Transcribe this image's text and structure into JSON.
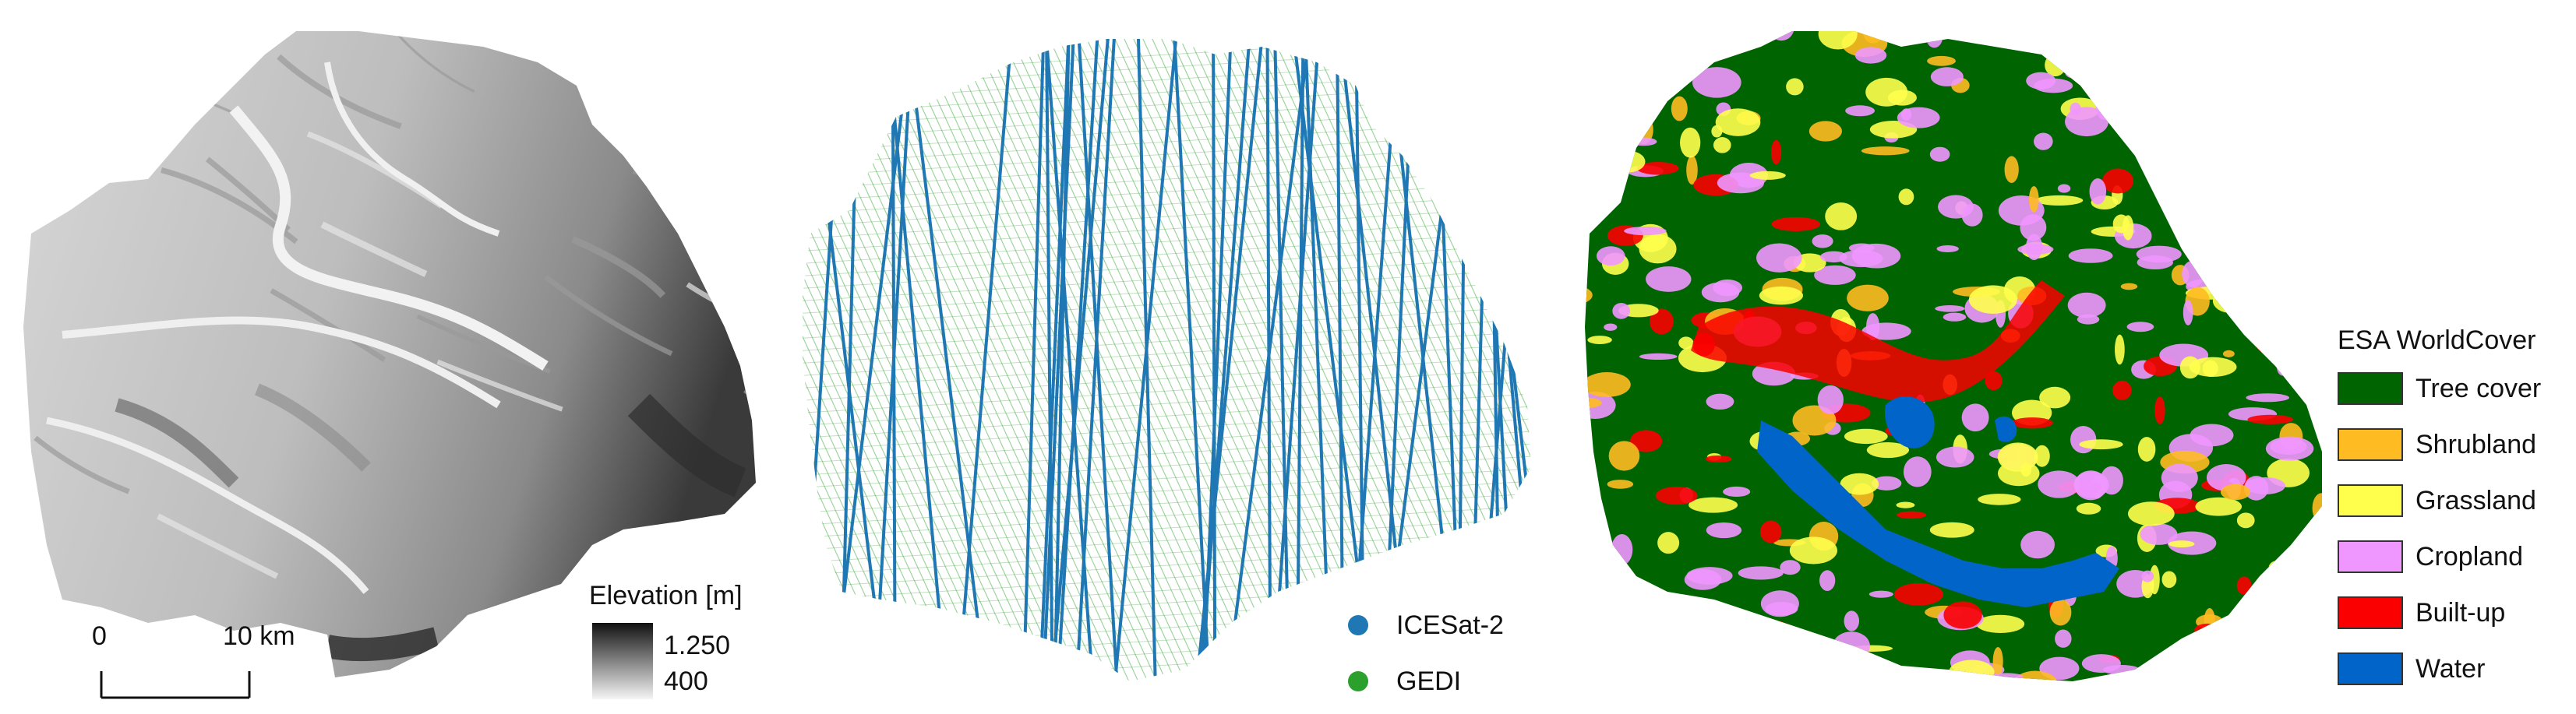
{
  "elevation_panel": {
    "legend_title": "Elevation [m]",
    "legend_max": "1.250",
    "legend_min": "400",
    "scale_start": "0",
    "scale_end": "10 km"
  },
  "tracks_panel": {
    "legend": [
      {
        "label": "ICESat-2",
        "color": "#1f77b4"
      },
      {
        "label": "GEDI",
        "color": "#2ca02c"
      }
    ]
  },
  "landcover_panel": {
    "legend_title": "ESA WorldCover",
    "classes": [
      {
        "label": "Tree cover",
        "color": "#006400"
      },
      {
        "label": "Shrubland",
        "color": "#ffbb22"
      },
      {
        "label": "Grassland",
        "color": "#ffff4c"
      },
      {
        "label": "Cropland",
        "color": "#f096ff"
      },
      {
        "label": "Built-up",
        "color": "#fa0000"
      },
      {
        "label": "Water",
        "color": "#0064c8"
      }
    ]
  }
}
